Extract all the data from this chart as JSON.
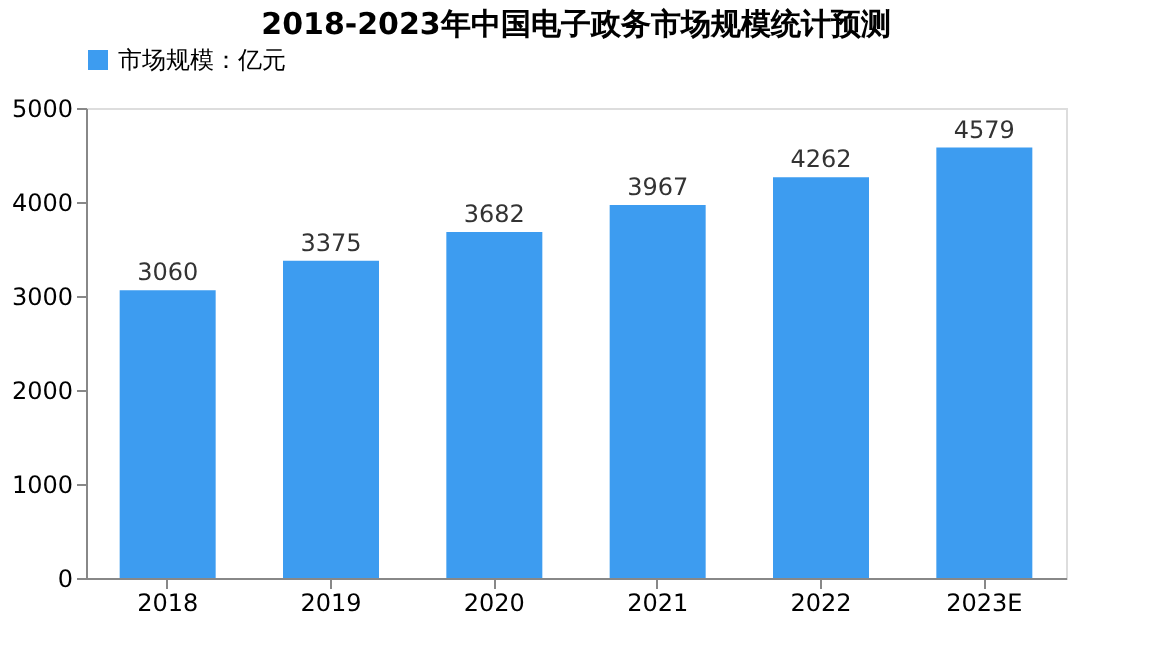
{
  "chart_data": {
    "type": "bar",
    "title": "2018-2023年中国电子政务市场规模统计预测",
    "categories": [
      "2018",
      "2019",
      "2020",
      "2021",
      "2022",
      "2023E"
    ],
    "series": [
      {
        "name": "市场规模：亿元",
        "color": "#3d9cf0",
        "values": [
          3060,
          3375,
          3682,
          3967,
          4262,
          4579
        ]
      }
    ],
    "ylim": [
      0,
      5000
    ],
    "yticks": [
      0,
      1000,
      2000,
      3000,
      4000,
      5000
    ],
    "grid": false,
    "legend": "top",
    "data_labels": true
  }
}
